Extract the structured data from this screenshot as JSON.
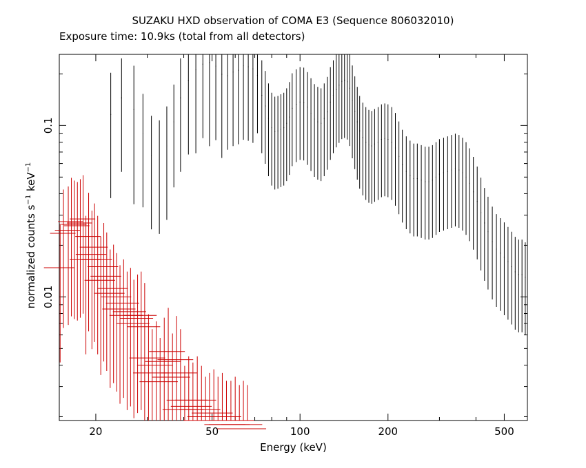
{
  "chart_data": {
    "type": "scatter",
    "title": "SUZAKU HXD observation of COMA E3 (Sequence 806032010)",
    "subtitle": "Exposure time: 10.9ks (total from all detectors)",
    "xlabel": "Energy (keV)",
    "ylabel": {
      "prefix": "normalized counts s",
      "exp1": "−1",
      "mid": " keV",
      "exp2": "−1"
    },
    "xscale": "log",
    "yscale": "log",
    "xlim": [
      15,
      600
    ],
    "ylim": [
      0.0019,
      0.26
    ],
    "x_ticks": [
      {
        "value": 20,
        "label": "20"
      },
      {
        "value": 50,
        "label": "50"
      },
      {
        "value": 100,
        "label": "100"
      },
      {
        "value": 200,
        "label": "200"
      },
      {
        "value": 500,
        "label": "500"
      }
    ],
    "y_ticks": [
      {
        "value": 0.01,
        "label": "0.01"
      },
      {
        "value": 0.1,
        "label": "0.1"
      }
    ],
    "series": [
      {
        "color": "#000000",
        "points": [
          [
            22.5,
            0.116,
            0.003,
            0.75
          ],
          [
            24.5,
            0.145,
            0.003,
            0.7
          ],
          [
            27,
            0.124,
            0.003,
            0.8
          ],
          [
            29,
            0.09,
            0.002,
            0.7
          ],
          [
            31,
            0.067,
            0.002,
            0.7
          ],
          [
            33,
            0.063,
            0.002,
            0.7
          ],
          [
            35,
            0.076,
            0.002,
            0.7
          ],
          [
            37,
            0.105,
            0.002,
            0.65
          ],
          [
            39,
            0.145,
            0.003,
            0.7
          ],
          [
            41.5,
            0.183,
            0.003,
            0.7
          ],
          [
            44,
            0.212,
            0.003,
            0.75
          ],
          [
            46.5,
            0.228,
            0.003,
            0.7
          ],
          [
            49,
            0.233,
            0.003,
            0.75
          ],
          [
            51.5,
            0.222,
            0.003,
            0.7
          ],
          [
            54,
            0.199,
            0.003,
            0.75
          ],
          [
            56.5,
            0.195,
            0.003,
            0.7
          ],
          [
            59,
            0.205,
            0.003,
            0.7
          ],
          [
            61.5,
            0.21,
            0.003,
            0.7
          ],
          [
            64,
            0.223,
            0.003,
            0.7
          ],
          [
            66.5,
            0.22,
            0.003,
            0.7
          ],
          [
            69,
            0.214,
            0.003,
            0.7
          ],
          [
            71.5,
            0.196,
            0.003,
            0.6
          ],
          [
            74,
            0.15,
            0.003,
            0.6
          ],
          [
            76,
            0.13,
            0.003,
            0.6
          ],
          [
            78,
            0.11,
            0.003,
            0.6
          ],
          [
            80,
            0.097,
            0.003,
            0.6
          ],
          [
            82,
            0.092,
            0.003,
            0.6
          ],
          [
            84,
            0.093,
            0.003,
            0.6
          ],
          [
            86,
            0.095,
            0.003,
            0.6
          ],
          [
            88,
            0.097,
            0.003,
            0.6
          ],
          [
            90,
            0.103,
            0.003,
            0.6
          ],
          [
            92,
            0.112,
            0.003,
            0.6
          ],
          [
            94,
            0.126,
            0.003,
            0.6
          ],
          [
            97,
            0.133,
            0.003,
            0.6
          ],
          [
            100,
            0.137,
            0.003,
            0.6
          ],
          [
            103,
            0.136,
            0.003,
            0.6
          ],
          [
            106,
            0.128,
            0.003,
            0.6
          ],
          [
            109,
            0.118,
            0.003,
            0.6
          ],
          [
            112,
            0.109,
            0.003,
            0.6
          ],
          [
            115,
            0.105,
            0.003,
            0.6
          ],
          [
            118,
            0.103,
            0.003,
            0.6
          ],
          [
            121,
            0.11,
            0.003,
            0.6
          ],
          [
            124,
            0.12,
            0.003,
            0.6
          ],
          [
            127,
            0.137,
            0.003,
            0.6
          ],
          [
            130,
            0.15,
            0.003,
            0.6
          ],
          [
            133,
            0.162,
            0.003,
            0.6
          ],
          [
            136,
            0.172,
            0.003,
            0.6
          ],
          [
            139,
            0.181,
            0.003,
            0.6
          ],
          [
            142,
            0.184,
            0.003,
            0.6
          ],
          [
            145,
            0.18,
            0.003,
            0.6
          ],
          [
            148,
            0.165,
            0.003,
            0.6
          ],
          [
            151,
            0.14,
            0.003,
            0.6
          ],
          [
            154,
            0.121,
            0.003,
            0.6
          ],
          [
            157,
            0.105,
            0.003,
            0.6
          ],
          [
            160,
            0.093,
            0.003,
            0.6
          ],
          [
            164,
            0.085,
            0.003,
            0.6
          ],
          [
            168,
            0.08,
            0.003,
            0.6
          ],
          [
            172,
            0.077,
            0.003,
            0.6
          ],
          [
            176,
            0.076,
            0.003,
            0.6
          ],
          [
            180,
            0.078,
            0.003,
            0.6
          ],
          [
            185,
            0.08,
            0.003,
            0.6
          ],
          [
            190,
            0.083,
            0.003,
            0.6
          ],
          [
            195,
            0.084,
            0.003,
            0.6
          ],
          [
            200,
            0.083,
            0.003,
            0.6
          ],
          [
            206,
            0.08,
            0.003,
            0.6
          ],
          [
            212,
            0.074,
            0.003,
            0.6
          ],
          [
            218,
            0.066,
            0.003,
            0.6
          ],
          [
            224,
            0.059,
            0.003,
            0.6
          ],
          [
            231,
            0.054,
            0.003,
            0.6
          ],
          [
            238,
            0.051,
            0.003,
            0.6
          ],
          [
            245,
            0.049,
            0.003,
            0.6
          ],
          [
            252,
            0.049,
            0.003,
            0.6
          ],
          [
            260,
            0.048,
            0.003,
            0.6
          ],
          [
            268,
            0.047,
            0.003,
            0.6
          ],
          [
            276,
            0.047,
            0.003,
            0.6
          ],
          [
            284,
            0.048,
            0.003,
            0.6
          ],
          [
            292,
            0.05,
            0.003,
            0.6
          ],
          [
            300,
            0.052,
            0.003,
            0.6
          ],
          [
            310,
            0.053,
            0.003,
            0.6
          ],
          [
            320,
            0.054,
            0.003,
            0.6
          ],
          [
            330,
            0.055,
            0.003,
            0.6
          ],
          [
            340,
            0.056,
            0.003,
            0.6
          ],
          [
            350,
            0.055,
            0.003,
            0.6
          ],
          [
            360,
            0.053,
            0.003,
            0.6
          ],
          [
            370,
            0.05,
            0.003,
            0.6
          ],
          [
            380,
            0.046,
            0.003,
            0.6
          ],
          [
            392,
            0.041,
            0.003,
            0.6
          ],
          [
            404,
            0.036,
            0.003,
            0.6
          ],
          [
            416,
            0.031,
            0.003,
            0.6
          ],
          [
            428,
            0.027,
            0.003,
            0.6
          ],
          [
            440,
            0.024,
            0.003,
            0.6
          ],
          [
            455,
            0.021,
            0.003,
            0.6
          ],
          [
            470,
            0.019,
            0.003,
            0.6
          ],
          [
            485,
            0.018,
            0.003,
            0.6
          ],
          [
            500,
            0.017,
            0.003,
            0.6
          ],
          [
            515,
            0.016,
            0.003,
            0.6
          ],
          [
            530,
            0.015,
            0.003,
            0.6
          ],
          [
            545,
            0.014,
            0.003,
            0.6
          ],
          [
            560,
            0.0135,
            0.003,
            0.6
          ],
          [
            575,
            0.0135,
            0.003,
            0.6
          ],
          [
            590,
            0.013,
            0.003,
            0.6
          ]
        ]
      },
      {
        "color": "#cc0000",
        "points": [
          [
            15.1,
            0.0148,
            0.12,
            0.8
          ],
          [
            15.5,
            0.0235,
            0.1,
            0.8
          ],
          [
            16.1,
            0.0245,
            0.1,
            0.8
          ],
          [
            16.5,
            0.0275,
            0.1,
            0.8
          ],
          [
            16.9,
            0.0265,
            0.1,
            0.8
          ],
          [
            17.3,
            0.026,
            0.1,
            0.8
          ],
          [
            17.7,
            0.027,
            0.1,
            0.8
          ],
          [
            18.1,
            0.0285,
            0.1,
            0.8
          ],
          [
            18.5,
            0.0165,
            0.12,
            0.8
          ],
          [
            18.9,
            0.0225,
            0.1,
            0.8
          ],
          [
            19.4,
            0.0177,
            0.12,
            0.8
          ],
          [
            19.8,
            0.0195,
            0.11,
            0.8
          ],
          [
            20.3,
            0.0165,
            0.12,
            0.8
          ],
          [
            20.8,
            0.0125,
            0.12,
            0.8
          ],
          [
            21.3,
            0.015,
            0.12,
            0.8
          ],
          [
            21.8,
            0.0132,
            0.12,
            0.8
          ],
          [
            22.4,
            0.0105,
            0.12,
            0.8
          ],
          [
            23.0,
            0.0112,
            0.12,
            0.8
          ],
          [
            23.6,
            0.01,
            0.12,
            0.8
          ],
          [
            24.2,
            0.0085,
            0.13,
            0.8
          ],
          [
            24.9,
            0.0092,
            0.13,
            0.8
          ],
          [
            25.6,
            0.0078,
            0.13,
            0.8
          ],
          [
            26.3,
            0.0082,
            0.13,
            0.8
          ],
          [
            27.0,
            0.007,
            0.13,
            0.8
          ],
          [
            27.8,
            0.0075,
            0.13,
            0.8
          ],
          [
            28.6,
            0.0078,
            0.13,
            0.8
          ],
          [
            29.4,
            0.0067,
            0.13,
            0.8
          ],
          [
            30.3,
            0.0044,
            0.14,
            0.8
          ],
          [
            31.2,
            0.0036,
            0.14,
            0.8
          ],
          [
            32.2,
            0.004,
            0.14,
            0.8
          ],
          [
            33.2,
            0.0032,
            0.15,
            0.8
          ],
          [
            34.3,
            0.0042,
            0.14,
            0.8
          ],
          [
            35.4,
            0.0048,
            0.14,
            0.8
          ],
          [
            36.6,
            0.0034,
            0.15,
            0.8
          ],
          [
            37.8,
            0.0043,
            0.14,
            0.8
          ],
          [
            39.0,
            0.0036,
            0.14,
            0.8
          ],
          [
            40.3,
            0.0022,
            0.16,
            0.8
          ],
          [
            41.6,
            0.0025,
            0.16,
            0.8
          ],
          [
            43.0,
            0.0023,
            0.16,
            0.8
          ],
          [
            44.5,
            0.0025,
            0.16,
            0.8
          ],
          [
            46.0,
            0.0022,
            0.16,
            0.8
          ],
          [
            47.5,
            0.0019,
            0.16,
            0.8
          ],
          [
            49.0,
            0.002,
            0.16,
            0.8
          ],
          [
            50.7,
            0.0021,
            0.16,
            0.8
          ],
          [
            52.4,
            0.0019,
            0.16,
            0.8
          ],
          [
            54.2,
            0.002,
            0.16,
            0.8
          ],
          [
            56.0,
            0.0018,
            0.16,
            0.8
          ],
          [
            58.0,
            0.0018,
            0.16,
            0.8
          ],
          [
            60.0,
            0.0019,
            0.16,
            0.8
          ],
          [
            62.0,
            0.0017,
            0.16,
            0.8
          ],
          [
            64.0,
            0.0018,
            0.16,
            0.8
          ],
          [
            66.0,
            0.0017,
            0.16,
            0.8
          ]
        ]
      }
    ]
  }
}
